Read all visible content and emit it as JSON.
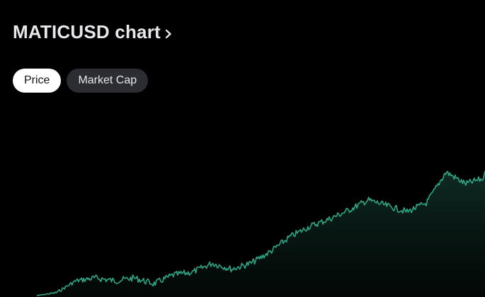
{
  "header": {
    "title": "MATICUSD chart",
    "chevron_icon": "chevron-right-icon"
  },
  "tabs": [
    {
      "label": "Price",
      "active": true
    },
    {
      "label": "Market Cap",
      "active": false
    }
  ],
  "colors": {
    "background": "#000000",
    "line": "#2fa586",
    "area_top": "#1b4f41",
    "title": "#e6e8eb"
  },
  "chart_data": {
    "type": "area",
    "trend": [
      0.0,
      0.02,
      0.1,
      0.12,
      0.1,
      0.12,
      0.08,
      0.14,
      0.16,
      0.22,
      0.18,
      0.22,
      0.3,
      0.4,
      0.47,
      0.52,
      0.58,
      0.65,
      0.61,
      0.57,
      0.63,
      0.84,
      0.76,
      0.8
    ],
    "grid": false,
    "legend": "none"
  }
}
